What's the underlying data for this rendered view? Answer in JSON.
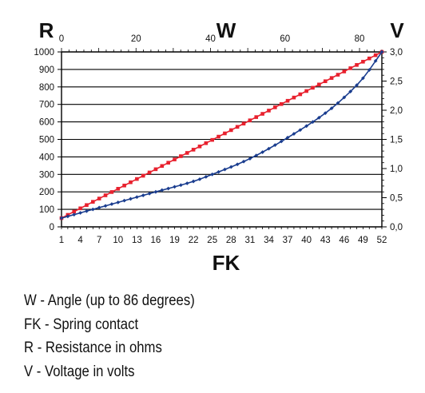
{
  "chart_data": {
    "type": "line",
    "axis_labels": {
      "left": "R",
      "top": "W",
      "right": "V",
      "bottom": "FK"
    },
    "x_bottom": {
      "label": "FK",
      "range": [
        1,
        52
      ],
      "ticks": [
        "1",
        "4",
        "7",
        "10",
        "13",
        "16",
        "19",
        "22",
        "25",
        "28",
        "31",
        "34",
        "37",
        "40",
        "43",
        "46",
        "49",
        "52"
      ]
    },
    "x_top": {
      "label": "W",
      "range": [
        0,
        86
      ],
      "ticks": [
        "0",
        "20",
        "40",
        "60",
        "80"
      ]
    },
    "y_left": {
      "label": "R",
      "range": [
        0,
        1000
      ],
      "ticks": [
        "0",
        "100",
        "200",
        "300",
        "400",
        "500",
        "600",
        "700",
        "800",
        "900",
        "1000"
      ]
    },
    "y_right": {
      "label": "V",
      "range": [
        0,
        3
      ],
      "ticks": [
        "0,0",
        "0,5",
        "1,0",
        "1,5",
        "2,0",
        "2,5",
        "3,0"
      ]
    },
    "grid": "horizontal",
    "series": [
      {
        "color": "#e8212e",
        "marker": "square",
        "x": [
          1,
          52
        ],
        "y": [
          50,
          1000
        ],
        "interpolation": "linear"
      },
      {
        "color": "#1a3d8f",
        "marker": "diamond",
        "x": [
          1,
          10,
          16,
          22,
          25,
          31,
          37,
          43,
          46,
          49,
          52
        ],
        "y": [
          50,
          140,
          200,
          260,
          300,
          390,
          510,
          650,
          740,
          850,
          1000
        ],
        "interpolation": "smooth"
      }
    ]
  },
  "legend": [
    "W - Angle (up to 86 degrees)",
    "FK - Spring contact",
    "R - Resistance in ohms",
    "V - Voltage in volts"
  ]
}
